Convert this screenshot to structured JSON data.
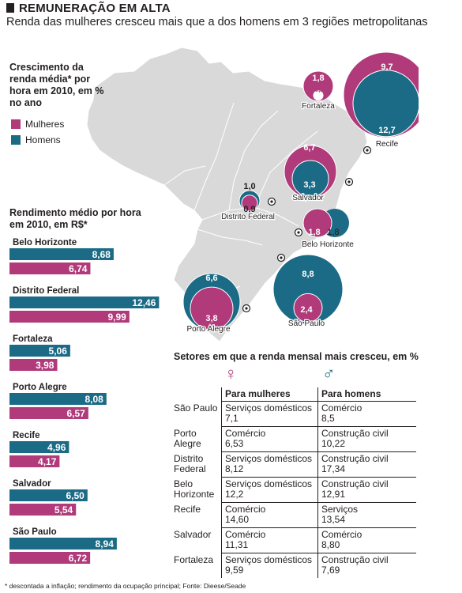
{
  "header": {
    "title": "REMUNERAÇÃO EM ALTA",
    "subtitle": "Renda das mulheres cresceu mais que a dos homens em 3 regiões metropolitanas"
  },
  "colors": {
    "women": "#b03a7a",
    "men": "#1b6b86",
    "map_fill": "#d9d9d9",
    "map_stroke": "#ffffff"
  },
  "growth_legend": {
    "heading": "Crescimento da renda média* por hora em 2010, em % no ano",
    "women_label": "Mulheres",
    "men_label": "Homens"
  },
  "map_data": {
    "cities": [
      {
        "name": "Fortaleza",
        "women": "1,8",
        "men": "-0,2",
        "women_value": 1.8,
        "men_value": -0.2
      },
      {
        "name": "Recife",
        "women": "9,7",
        "men": "12,7",
        "women_value": 9.7,
        "men_value": 12.7
      },
      {
        "name": "Salvador",
        "women": "6,7",
        "men": "3,3",
        "women_value": 6.7,
        "men_value": 3.3
      },
      {
        "name": "Distrito Federal",
        "women": "0,9",
        "men": "1,0",
        "women_value": 0.9,
        "men_value": 1.0
      },
      {
        "name": "Belo Horizonte",
        "women": "1,8",
        "men": "1,8",
        "women_value": 1.8,
        "men_value": 1.8
      },
      {
        "name": "Porto Alegre",
        "women": "3,8",
        "men": "6,6",
        "women_value": 3.8,
        "men_value": 6.6
      },
      {
        "name": "São Paulo",
        "women": "2,4",
        "men": "8,8",
        "women_value": 2.4,
        "men_value": 8.8
      }
    ]
  },
  "avg_heading": "Rendimento médio por hora em 2010, em R$*",
  "chart_data": {
    "type": "bar",
    "orientation": "horizontal",
    "categories": [
      "Belo Horizonte",
      "Distrito Federal",
      "Fortaleza",
      "Porto Alegre",
      "Recife",
      "Salvador",
      "São Paulo"
    ],
    "series": [
      {
        "name": "Homens",
        "values": [
          8.68,
          12.46,
          5.06,
          8.08,
          4.96,
          6.5,
          8.94
        ],
        "labels": [
          "8,68",
          "12,46",
          "5,06",
          "8,08",
          "4,96",
          "6,50",
          "8,94"
        ]
      },
      {
        "name": "Mulheres",
        "values": [
          6.74,
          9.99,
          3.98,
          6.57,
          4.17,
          5.54,
          6.72
        ],
        "labels": [
          "6,74",
          "9,99",
          "3,98",
          "6,57",
          "4,17",
          "5,54",
          "6,72"
        ]
      }
    ],
    "title": "Rendimento médio por hora em 2010, em R$*"
  },
  "sectors": {
    "title": "Setores em que a renda mensal mais cresceu, em %",
    "female_symbol": "♀",
    "male_symbol": "♂",
    "col_women": "Para mulheres",
    "col_men": "Para homens",
    "rows": [
      {
        "city": "São Paulo",
        "women_sector": "Serviços domésticos",
        "women_value": "7,1",
        "men_sector": "Comércio",
        "men_value": "8,5"
      },
      {
        "city": "Porto Alegre",
        "women_sector": "Comércio",
        "women_value": "6,53",
        "men_sector": "Construção civil",
        "men_value": "10,22"
      },
      {
        "city": "Distrito Federal",
        "women_sector": "Serviços domésticos",
        "women_value": "8,12",
        "men_sector": "Construção civil",
        "men_value": "17,34"
      },
      {
        "city": "Belo Horizonte",
        "women_sector": "Serviços domésticos",
        "women_value": "12,2",
        "men_sector": "Construção civil",
        "men_value": "12,91"
      },
      {
        "city": "Recife",
        "women_sector": "Comércio",
        "women_value": "14,60",
        "men_sector": "Serviços",
        "men_value": "13,54"
      },
      {
        "city": "Salvador",
        "women_sector": "Comércio",
        "women_value": "11,31",
        "men_sector": "Comércio",
        "men_value": "8,80"
      },
      {
        "city": "Fortaleza",
        "women_sector": "Serviços domésticos",
        "women_value": "9,59",
        "men_sector": "Construção civil",
        "men_value": "7,69"
      }
    ]
  },
  "footnote": "* descontada a inflação; rendimento da ocupação principal; Fonte: Dieese/Seade"
}
